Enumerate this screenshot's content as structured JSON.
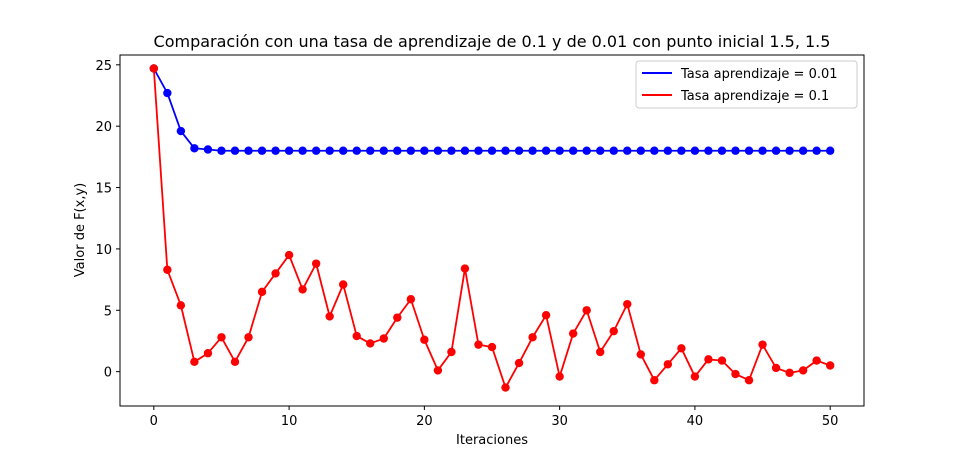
{
  "chart_data": {
    "type": "line",
    "title": "Comparación con una tasa de aprendizaje de 0.1 y de 0.01 con punto inicial 1.5, 1.5",
    "xlabel": "Iteraciones",
    "ylabel": "Valor de F(x,y)",
    "xlim": [
      -2.5,
      52.5
    ],
    "ylim": [
      -2.8,
      25.8
    ],
    "xticks": [
      0,
      10,
      20,
      30,
      40,
      50
    ],
    "yticks": [
      0,
      5,
      10,
      15,
      20,
      25
    ],
    "grid": false,
    "legend_position": "top-right",
    "x": [
      0,
      1,
      2,
      3,
      4,
      5,
      6,
      7,
      8,
      9,
      10,
      11,
      12,
      13,
      14,
      15,
      16,
      17,
      18,
      19,
      20,
      21,
      22,
      23,
      24,
      25,
      26,
      27,
      28,
      29,
      30,
      31,
      32,
      33,
      34,
      35,
      36,
      37,
      38,
      39,
      40,
      41,
      42,
      43,
      44,
      45,
      46,
      47,
      48,
      49,
      50
    ],
    "series": [
      {
        "name": "Tasa aprendizaje = 0.01",
        "color": "#0000ff",
        "values": [
          24.7,
          22.7,
          19.6,
          18.2,
          18.1,
          18.0,
          18.0,
          18.0,
          18.0,
          18.0,
          18.0,
          18.0,
          18.0,
          18.0,
          18.0,
          18.0,
          18.0,
          18.0,
          18.0,
          18.0,
          18.0,
          18.0,
          18.0,
          18.0,
          18.0,
          18.0,
          18.0,
          18.0,
          18.0,
          18.0,
          18.0,
          18.0,
          18.0,
          18.0,
          18.0,
          18.0,
          18.0,
          18.0,
          18.0,
          18.0,
          18.0,
          18.0,
          18.0,
          18.0,
          18.0,
          18.0,
          18.0,
          18.0,
          18.0,
          18.0,
          18.0
        ]
      },
      {
        "name": "Tasa aprendizaje = 0.1",
        "color": "#ff0000",
        "values": [
          24.7,
          8.3,
          5.4,
          0.8,
          1.5,
          2.8,
          0.8,
          2.8,
          6.5,
          8.0,
          9.5,
          6.7,
          8.8,
          4.5,
          7.1,
          2.9,
          2.3,
          2.7,
          4.4,
          5.9,
          2.6,
          0.1,
          1.6,
          8.4,
          2.2,
          2.0,
          -1.3,
          0.7,
          2.8,
          4.6,
          -0.4,
          3.1,
          5.0,
          1.6,
          3.3,
          5.5,
          1.4,
          -0.7,
          0.6,
          1.9,
          -0.4,
          1.0,
          0.9,
          -0.2,
          -0.7,
          2.2,
          0.3,
          -0.1,
          0.1,
          0.9,
          0.5
        ]
      }
    ]
  }
}
